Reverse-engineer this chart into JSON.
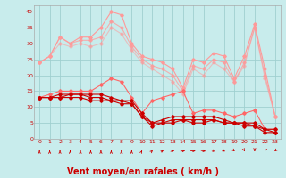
{
  "bg_color": "#c8ecec",
  "grid_color": "#a0d0d0",
  "xlabel": "Vent moyen/en rafales ( km/h )",
  "xlabel_color": "#cc0000",
  "xlabel_fontsize": 7,
  "tick_color": "#cc0000",
  "ylim": [
    0,
    42
  ],
  "yticks": [
    0,
    5,
    10,
    15,
    20,
    25,
    30,
    35,
    40
  ],
  "xticks": [
    0,
    1,
    2,
    3,
    4,
    5,
    6,
    7,
    8,
    9,
    10,
    11,
    12,
    13,
    14,
    15,
    16,
    17,
    18,
    19,
    20,
    21,
    22,
    23
  ],
  "colors": [
    "#ff9999",
    "#ff9999",
    "#ff9999",
    "#ff6666",
    "#cc0000",
    "#cc0000",
    "#cc0000"
  ],
  "alphas": [
    1.0,
    0.75,
    0.55,
    1.0,
    1.0,
    1.0,
    1.0
  ],
  "series": [
    [
      24,
      26,
      32,
      30,
      32,
      32,
      35,
      40,
      39,
      30,
      26,
      25,
      24,
      22,
      16,
      25,
      24,
      27,
      26,
      19,
      26,
      36,
      22,
      7
    ],
    [
      24,
      26,
      32,
      30,
      31,
      31,
      32,
      37,
      35,
      29,
      25,
      23,
      22,
      20,
      15,
      23,
      22,
      25,
      24,
      18,
      24,
      35,
      20,
      7
    ],
    [
      24,
      26,
      30,
      29,
      30,
      29,
      30,
      35,
      33,
      28,
      24,
      22,
      20,
      18,
      14,
      22,
      20,
      24,
      22,
      18,
      23,
      35,
      19,
      7
    ],
    [
      13,
      14,
      15,
      15,
      15,
      15,
      17,
      19,
      18,
      13,
      8,
      12,
      13,
      14,
      15,
      8,
      9,
      9,
      8,
      7,
      8,
      9,
      3,
      3
    ],
    [
      13,
      13,
      14,
      14,
      14,
      14,
      14,
      13,
      12,
      12,
      8,
      5,
      6,
      7,
      7,
      7,
      7,
      7,
      6,
      5,
      5,
      5,
      3,
      3
    ],
    [
      13,
      13,
      13,
      14,
      14,
      13,
      13,
      12,
      12,
      11,
      7,
      5,
      5,
      6,
      6,
      6,
      6,
      6,
      5,
      5,
      5,
      4,
      3,
      2
    ],
    [
      13,
      13,
      13,
      13,
      13,
      12,
      12,
      12,
      11,
      11,
      7,
      4,
      5,
      5,
      6,
      5,
      5,
      6,
      5,
      5,
      4,
      4,
      2,
      2
    ]
  ],
  "arrow_color": "#cc0000",
  "wind_dirs": [
    0,
    0,
    0,
    0,
    0,
    0,
    0,
    0,
    0,
    0,
    15,
    30,
    45,
    60,
    75,
    90,
    105,
    120,
    135,
    150,
    165,
    180,
    195,
    210
  ]
}
